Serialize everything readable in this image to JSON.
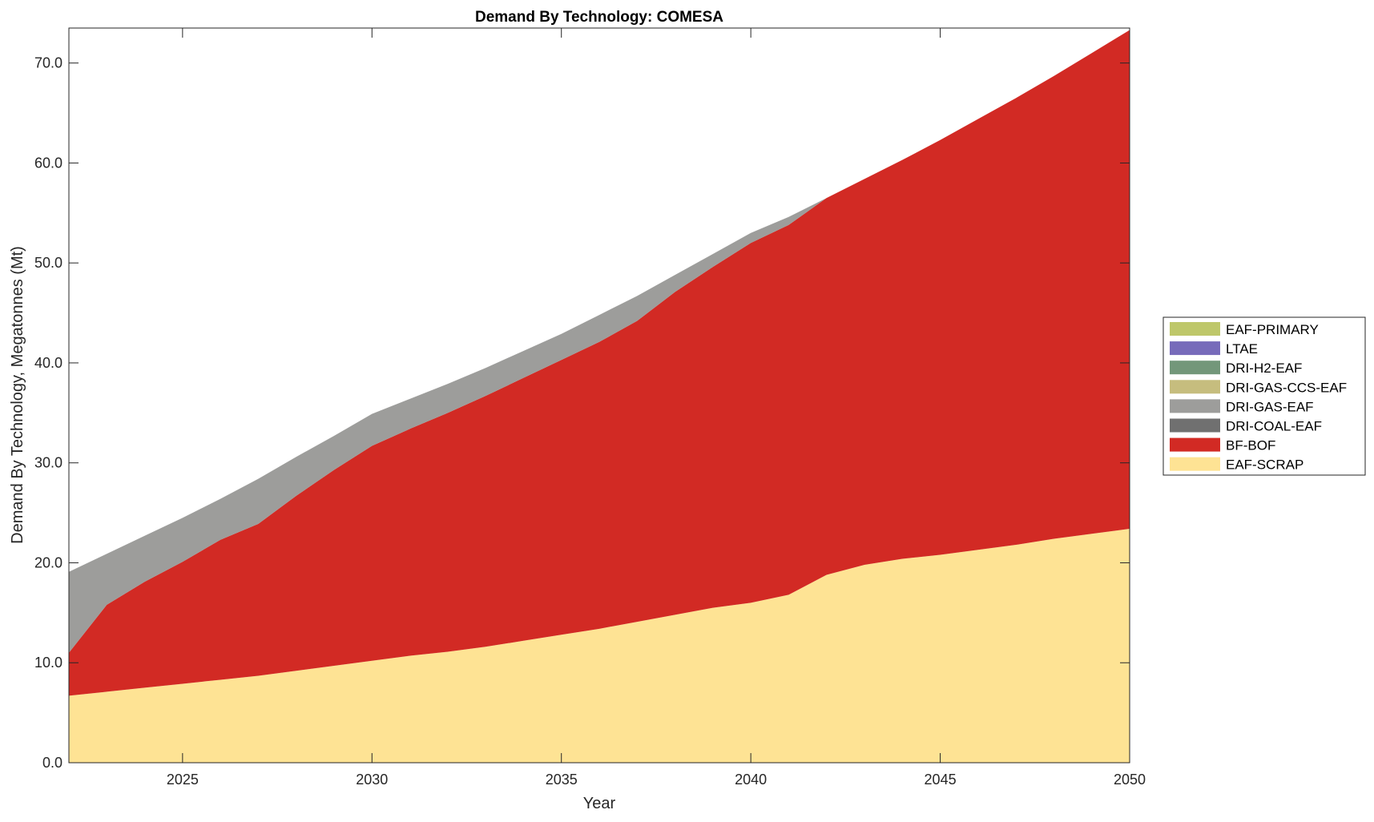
{
  "chart_data": {
    "type": "area",
    "stacked": true,
    "title": "Demand By Technology: COMESA",
    "xlabel": "Year",
    "ylabel": "Demand By Technology, Megatonnes (Mt)",
    "xlim": [
      2022,
      2050
    ],
    "ylim": [
      0,
      73.5
    ],
    "xticks": [
      2025,
      2030,
      2035,
      2040,
      2045,
      2050
    ],
    "yticks": [
      "0.0",
      "10.0",
      "20.0",
      "30.0",
      "40.0",
      "50.0",
      "60.0",
      "70.0"
    ],
    "legend_position": "right",
    "x": [
      2022,
      2023,
      2024,
      2025,
      2026,
      2027,
      2028,
      2029,
      2030,
      2031,
      2032,
      2033,
      2034,
      2035,
      2036,
      2037,
      2038,
      2039,
      2040,
      2041,
      2042,
      2043,
      2044,
      2045,
      2046,
      2047,
      2048,
      2049,
      2050
    ],
    "series": [
      {
        "name": "EAF-SCRAP",
        "color": "#fee394",
        "values": [
          6.7,
          7.1,
          7.5,
          7.9,
          8.3,
          8.7,
          9.2,
          9.7,
          10.2,
          10.7,
          11.1,
          11.6,
          12.2,
          12.8,
          13.4,
          14.1,
          14.8,
          15.5,
          16.0,
          16.8,
          18.8,
          19.8,
          20.4,
          20.8,
          21.3,
          21.8,
          22.4,
          22.9,
          23.4
        ]
      },
      {
        "name": "BF-BOF",
        "color": "#d22a24",
        "values": [
          4.3,
          8.7,
          10.6,
          12.2,
          14.0,
          15.2,
          17.5,
          19.6,
          21.5,
          22.7,
          23.9,
          25.1,
          26.3,
          27.5,
          28.7,
          30.1,
          32.3,
          34.1,
          36.0,
          37.0,
          37.7,
          38.6,
          39.9,
          41.5,
          43.1,
          44.7,
          46.3,
          48.1,
          49.9
        ]
      },
      {
        "name": "DRI-COAL-EAF",
        "color": "#707070",
        "values": [
          0,
          0,
          0,
          0,
          0,
          0,
          0,
          0,
          0,
          0,
          0,
          0,
          0,
          0,
          0,
          0,
          0,
          0,
          0,
          0,
          0,
          0,
          0,
          0,
          0,
          0,
          0,
          0,
          0
        ]
      },
      {
        "name": "DRI-GAS-EAF",
        "color": "#9d9d9b",
        "values": [
          8.1,
          5.1,
          4.6,
          4.4,
          4.1,
          4.5,
          3.9,
          3.4,
          3.2,
          3.0,
          2.9,
          2.8,
          2.7,
          2.6,
          2.7,
          2.5,
          1.7,
          1.3,
          1.0,
          0.8,
          0,
          0,
          0,
          0,
          0,
          0,
          0,
          0,
          0
        ]
      },
      {
        "name": "DRI-GAS-CCS-EAF",
        "color": "#c6bd7e",
        "values": [
          0,
          0,
          0,
          0,
          0,
          0,
          0,
          0,
          0,
          0,
          0,
          0,
          0,
          0,
          0,
          0,
          0,
          0,
          0,
          0,
          0,
          0,
          0,
          0,
          0,
          0,
          0,
          0,
          0
        ]
      },
      {
        "name": "DRI-H2-EAF",
        "color": "#73977a",
        "values": [
          0,
          0,
          0,
          0,
          0,
          0,
          0,
          0,
          0,
          0,
          0,
          0,
          0,
          0,
          0,
          0,
          0,
          0,
          0,
          0,
          0,
          0,
          0,
          0,
          0,
          0,
          0,
          0,
          0
        ]
      },
      {
        "name": "LTAE",
        "color": "#776bba",
        "values": [
          0,
          0,
          0,
          0,
          0,
          0,
          0,
          0,
          0,
          0,
          0,
          0,
          0,
          0,
          0,
          0,
          0,
          0,
          0,
          0,
          0,
          0,
          0,
          0,
          0,
          0,
          0,
          0,
          0
        ]
      },
      {
        "name": "EAF-PRIMARY",
        "color": "#bec76a",
        "values": [
          0,
          0,
          0,
          0,
          0,
          0,
          0,
          0,
          0,
          0,
          0,
          0,
          0,
          0,
          0,
          0,
          0,
          0,
          0,
          0,
          0,
          0,
          0,
          0,
          0,
          0,
          0,
          0,
          0
        ]
      }
    ]
  }
}
